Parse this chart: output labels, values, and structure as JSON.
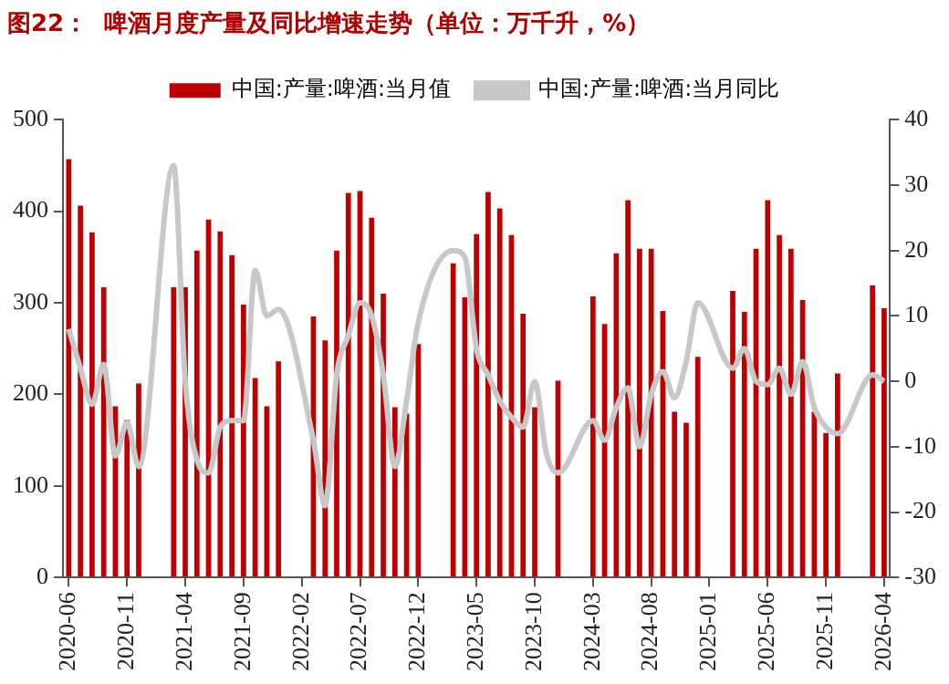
{
  "chart_data": {
    "type": "bar",
    "title": "图22：  啤酒月度产量及同比增速走势（单位：万千升，%）",
    "categories": [
      "2020-06",
      null,
      null,
      null,
      null,
      "2020-11",
      null,
      null,
      null,
      null,
      "2021-04",
      null,
      null,
      null,
      null,
      "2021-09",
      null,
      null,
      null,
      null,
      "2022-02",
      null,
      null,
      null,
      null,
      "2022-07",
      null,
      null,
      null,
      null,
      "2022-12",
      null,
      null,
      null,
      null,
      "2023-05",
      null,
      null,
      null,
      null,
      "2023-10",
      null,
      null,
      null,
      null,
      "2024-03",
      null,
      null,
      null,
      null,
      "2024-08",
      null,
      null,
      null,
      null,
      "2025-01",
      null,
      null,
      null,
      null,
      "2025-06",
      null,
      null,
      null,
      null,
      "2025-11",
      null,
      null,
      null,
      null,
      "2026-04"
    ],
    "series": [
      {
        "name": "中国:产量:啤酒:当月值",
        "color": "#c00000",
        "values": [
          457,
          406,
          377,
          317,
          187,
          172,
          212,
          null,
          null,
          317,
          317,
          357,
          391,
          378,
          352,
          298,
          218,
          187,
          236,
          null,
          null,
          285,
          259,
          357,
          420,
          422,
          393,
          310,
          186,
          179,
          255,
          null,
          null,
          343,
          306,
          375,
          421,
          403,
          374,
          288,
          186,
          null,
          215,
          null,
          null,
          307,
          277,
          354,
          412,
          359,
          359,
          291,
          181,
          169,
          241,
          null,
          null,
          313,
          290,
          359,
          412,
          374,
          359,
          303,
          181,
          158,
          223,
          null,
          null,
          319,
          294
        ]
      },
      {
        "name": "中国:产量:啤酒:当月同比",
        "type": "line",
        "color": "#c8c8c8",
        "axis": "y2",
        "values": [
          8,
          2,
          -3.5,
          2.6,
          -11.4,
          -6.3,
          -13,
          null,
          null,
          33,
          0,
          -12,
          -14,
          -7,
          -6,
          -6,
          17,
          10,
          11,
          null,
          null,
          -9,
          -19,
          1,
          7,
          12,
          10,
          1,
          -13,
          -3,
          9,
          null,
          null,
          20,
          19,
          5,
          1,
          -3,
          -5.5,
          -7,
          0,
          -11,
          -14,
          null,
          null,
          -6,
          -9,
          -4,
          -1,
          -10,
          -2,
          1.5,
          -2.5,
          3,
          12,
          null,
          null,
          2,
          5,
          0,
          -0.5,
          2,
          -2,
          3,
          -4,
          -7,
          -8,
          null,
          null,
          1,
          0
        ]
      }
    ],
    "ylim": [
      0,
      500
    ],
    "yticks": [
      0,
      100,
      200,
      300,
      400,
      500
    ],
    "y2lim": [
      -30,
      40
    ],
    "y2ticks": [
      -30,
      -20,
      -10,
      0,
      10,
      20,
      30,
      40
    ],
    "legend": "top",
    "grid": false,
    "marker": "none",
    "line_style": "solid"
  }
}
